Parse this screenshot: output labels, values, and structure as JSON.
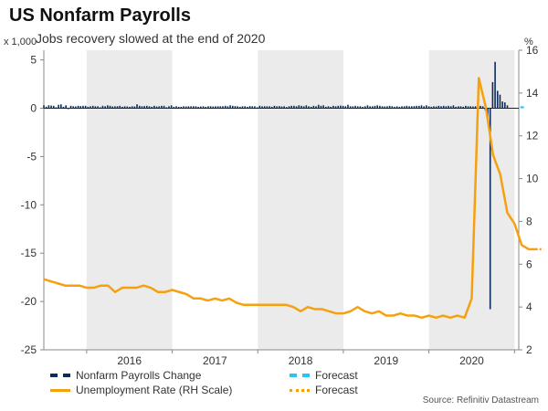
{
  "header": {
    "title": "US Nonfarm Payrolls",
    "subtitle": "Jobs recovery slowed at the end of 2020",
    "left_unit": "x 1,000",
    "right_unit": "%"
  },
  "legend": {
    "nfp": "Nonfarm Payrolls Change",
    "nfp_forecast": "Forecast",
    "unemployment": "Unemployment Rate (RH Scale)",
    "unemployment_forecast": "Forecast"
  },
  "source": "Source: Refinitiv Datastream",
  "colors": {
    "bar": "#0d2b5c",
    "bar_forecast": "#29c5f6",
    "line": "#f5a10f",
    "shade": "#ebebeb",
    "zero_line": "#222222"
  },
  "chart_data": {
    "type": "bar+line",
    "title": "US Nonfarm Payrolls",
    "subtitle": "Jobs recovery slowed at the end of 2020",
    "x_categories": [
      "2016",
      "2017",
      "2018",
      "2019",
      "2020"
    ],
    "x_range": [
      2015.5,
      2021.05
    ],
    "left_axis": {
      "label": "x 1,000",
      "range": [
        -25,
        6
      ],
      "ticks": [
        5,
        0,
        -5,
        -10,
        -15,
        -20,
        -25
      ]
    },
    "right_axis": {
      "label": "%",
      "range": [
        2,
        16
      ],
      "ticks": [
        16,
        14,
        12,
        10,
        8,
        6,
        4,
        2
      ]
    },
    "shaded_years": [
      "2016",
      "2018",
      "2020"
    ],
    "series": [
      {
        "name": "Nonfarm Payrolls Change",
        "type": "bar",
        "axis": "left",
        "start": "2015-07",
        "values": [
          0.3,
          0.15,
          0.3,
          0.28,
          0.25,
          0.1,
          0.35,
          0.4,
          0.15,
          0.3,
          0.05,
          0.25,
          0.2,
          0.18,
          0.25,
          0.22,
          0.25,
          0.25,
          0.15,
          0.2,
          0.25,
          0.2,
          0.2,
          0.1,
          0.25,
          0.2,
          0.3,
          0.25,
          0.18,
          0.2,
          0.2,
          0.25,
          0.15,
          0.2,
          0.18,
          0.15,
          0.2,
          0.18,
          0.4,
          0.25,
          0.2,
          0.22,
          0.25,
          0.2,
          0.15,
          0.25,
          0.18,
          0.2,
          0.25,
          0.25,
          0.1,
          0.2,
          0.3,
          0.15,
          0.2,
          0.15,
          0.15,
          0.2,
          0.18,
          0.2,
          0.2,
          0.2,
          0.2,
          0.15,
          0.18,
          0.2,
          0.15,
          0.2,
          0.2,
          0.18,
          0.2,
          0.2,
          0.2,
          0.2,
          0.25,
          0.2,
          0.3,
          0.25,
          0.22,
          0.2,
          0.15,
          0.2,
          0.2,
          0.15,
          0.22,
          0.2,
          0.2,
          0.1,
          0.25,
          0.2,
          0.2,
          0.2,
          0.2,
          0.15,
          0.25,
          0.2,
          0.22,
          0.18,
          0.2,
          0.12,
          0.2,
          0.25,
          0.25,
          0.2,
          0.3,
          0.25,
          0.2,
          0.3,
          0.2,
          0.15,
          0.25,
          0.2,
          0.35,
          0.25,
          0.3,
          0.15,
          0.2,
          0.15,
          0.25,
          0.2,
          0.25,
          0.27,
          0.25,
          0.2,
          0.35,
          0.2,
          0.2,
          0.25,
          0.2,
          0.2,
          0.15,
          0.2,
          0.3,
          0.2,
          0.2,
          0.25,
          0.3,
          0.25,
          0.2,
          0.18,
          0.2,
          0.25,
          0.2,
          0.15,
          0.2,
          0.15,
          0.2,
          0.2,
          0.25,
          0.2,
          0.2,
          0.22,
          0.25,
          0.25,
          0.3,
          0.2,
          0.3,
          0.2,
          0.15,
          0.2,
          0.18,
          0.25,
          0.2,
          0.25,
          0.2,
          0.25,
          0.2,
          0.3,
          0.15,
          0.2,
          0.2,
          0.15,
          0.25,
          0.2,
          0.2,
          0.18,
          0.2,
          0.2,
          0.25,
          0.2,
          -0.2,
          -1.4,
          -20.8,
          2.7,
          4.8,
          1.8,
          1.4,
          0.7,
          0.6,
          0.3
        ]
      },
      {
        "name": "Unemployment Rate (RH Scale)",
        "type": "line",
        "axis": "right",
        "start": "2015-07",
        "values": [
          5.3,
          5.2,
          5.1,
          5.0,
          5.0,
          5.0,
          4.9,
          4.9,
          5.0,
          5.0,
          4.7,
          4.9,
          4.9,
          4.9,
          5.0,
          4.9,
          4.7,
          4.7,
          4.8,
          4.7,
          4.6,
          4.4,
          4.4,
          4.3,
          4.4,
          4.3,
          4.4,
          4.2,
          4.1,
          4.1,
          4.1,
          4.1,
          4.1,
          4.1,
          4.1,
          4.0,
          3.8,
          4.0,
          3.9,
          3.9,
          3.8,
          3.7,
          3.7,
          3.8,
          4.0,
          3.8,
          3.7,
          3.8,
          3.6,
          3.6,
          3.7,
          3.6,
          3.6,
          3.5,
          3.6,
          3.5,
          3.6,
          3.5,
          3.6,
          3.5,
          4.4,
          14.7,
          13.3,
          11.1,
          10.2,
          8.4,
          7.9,
          6.9,
          6.7,
          6.7
        ]
      },
      {
        "name": "Forecast",
        "type": "bar",
        "axis": "left",
        "values": [
          0.2
        ]
      },
      {
        "name": "Forecast",
        "type": "line",
        "axis": "right",
        "values": [
          6.7,
          6.7
        ]
      }
    ]
  }
}
